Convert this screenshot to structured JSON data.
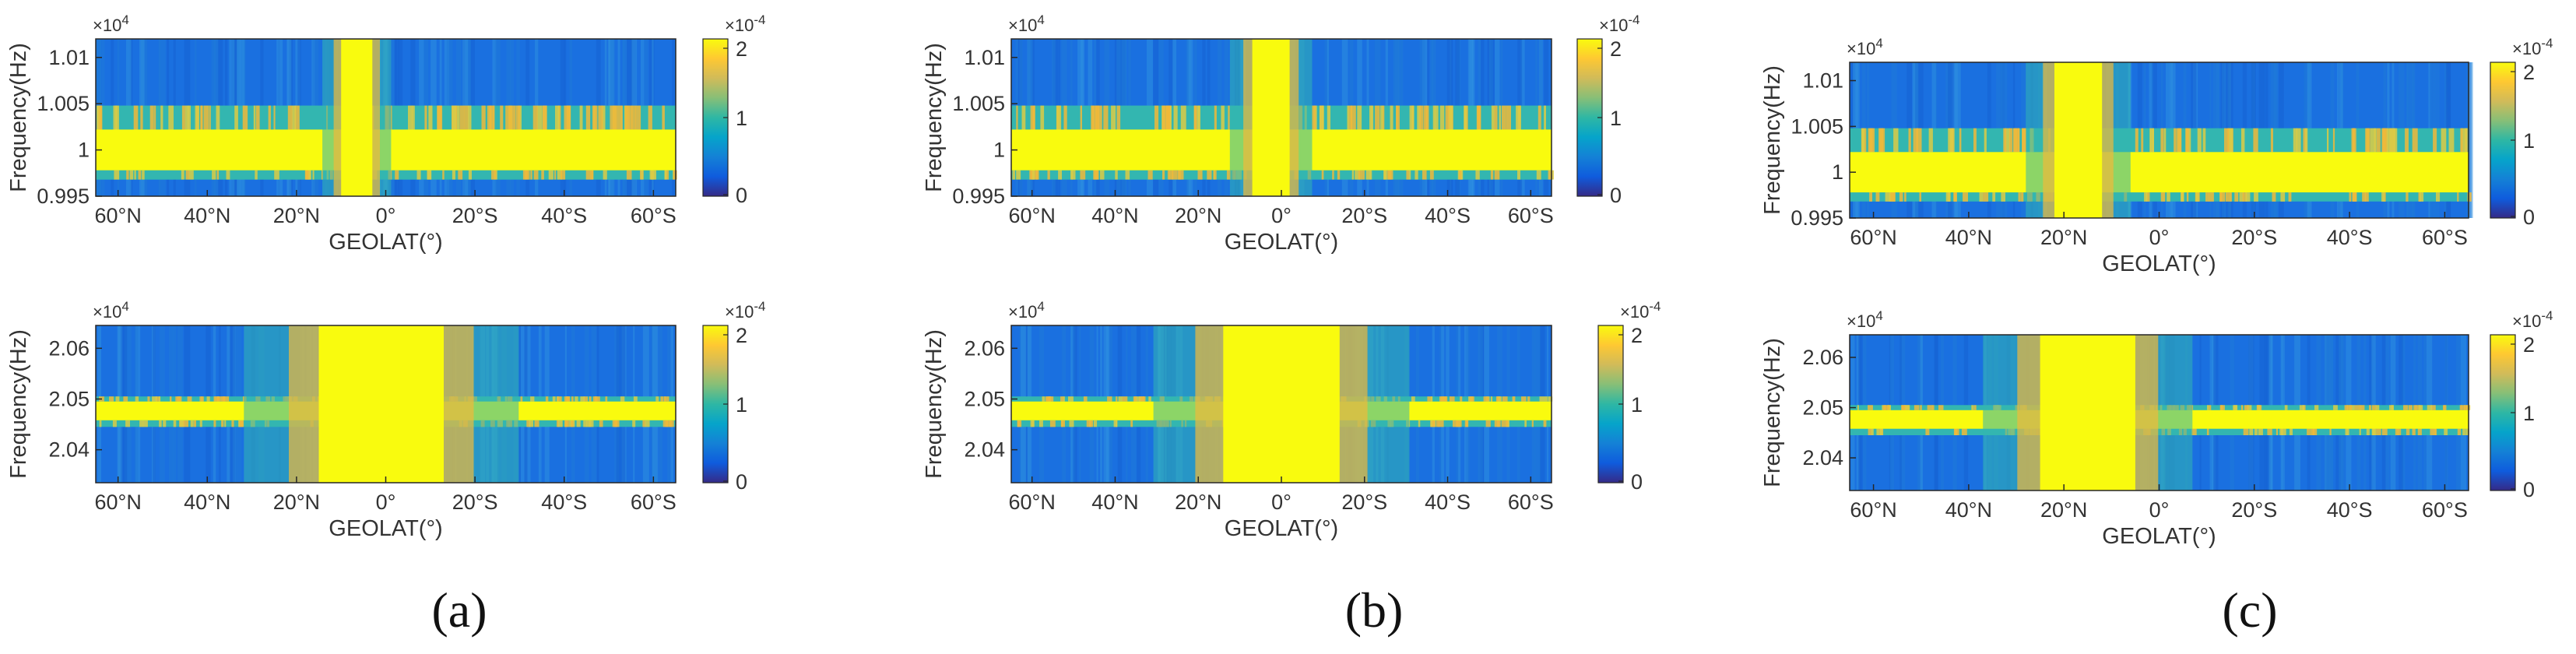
{
  "chart_data": [
    {
      "type": "heatmap",
      "panel": "(a)",
      "xlabel": "GEOLAT(°)",
      "x_ticks": [
        "60°N",
        "40°N",
        "20°N",
        "0°",
        "20°S",
        "40°S",
        "60°S"
      ],
      "x_range": [
        65,
        -65
      ],
      "plots": [
        {
          "ylabel": "Frequency(Hz)",
          "y_multiplier": "×10^4",
          "y_multiplier_base": "×10",
          "y_multiplier_exp": "4",
          "y_ticks": [
            "1.01",
            "1.005",
            "1",
            "0.995"
          ],
          "ylim": [
            0.995,
            1.012
          ],
          "colorbar": {
            "ticks": [
              "2",
              "1",
              "0"
            ],
            "multiplier_base": "×10",
            "multiplier_exp": "-4",
            "clim": [
              0,
              0.0002
            ]
          },
          "features": {
            "bright_band_y": [
              0.9978,
              1.0022
            ],
            "mid_band_y": [
              0.9968,
              1.0048
            ],
            "hot_lat": [
              10,
              3
            ],
            "equatorial_width_deg": 6
          }
        },
        {
          "ylabel": "Frequency(Hz)",
          "y_multiplier": "×10^4",
          "y_multiplier_base": "×10",
          "y_multiplier_exp": "4",
          "y_ticks": [
            "2.06",
            "2.05",
            "2.04"
          ],
          "ylim": [
            2.0335,
            2.0645
          ],
          "colorbar": {
            "ticks": [
              "2",
              "1",
              "0"
            ],
            "multiplier_base": "×10",
            "multiplier_exp": "-4",
            "clim": [
              0,
              0.0002
            ]
          },
          "features": {
            "bright_band_y": [
              2.0458,
              2.0495
            ],
            "mid_band_y": [
              2.0445,
              2.0505
            ],
            "hot_lat": [
              15,
              -13
            ],
            "equatorial_width_deg": 26
          }
        }
      ]
    },
    {
      "type": "heatmap",
      "panel": "(b)",
      "xlabel": "GEOLAT(°)",
      "x_ticks": [
        "60°N",
        "40°N",
        "20°N",
        "0°",
        "20°S",
        "40°S",
        "60°S"
      ],
      "x_range": [
        65,
        -65
      ],
      "plots": [
        {
          "ylabel": "Frequency(Hz)",
          "y_multiplier": "×10^4",
          "y_multiplier_base": "×10",
          "y_multiplier_exp": "4",
          "y_ticks": [
            "1.01",
            "1.005",
            "1",
            "0.995"
          ],
          "ylim": [
            0.995,
            1.012
          ],
          "colorbar": {
            "ticks": [
              "2",
              "1",
              "0"
            ],
            "multiplier_base": "×10",
            "multiplier_exp": "-4",
            "clim": [
              0,
              0.0002
            ]
          },
          "features": {
            "bright_band_y": [
              0.9978,
              1.0022
            ],
            "mid_band_y": [
              0.9968,
              1.0048
            ],
            "hot_lat": [
              7,
              -2
            ],
            "equatorial_width_deg": 12
          }
        },
        {
          "ylabel": "Frequency(Hz)",
          "y_multiplier": "×10^4",
          "y_multiplier_base": "×10",
          "y_multiplier_exp": "4",
          "y_ticks": [
            "2.06",
            "2.05",
            "2.04"
          ],
          "ylim": [
            2.0335,
            2.0645
          ],
          "colorbar": {
            "ticks": [
              "2",
              "1",
              "0"
            ],
            "multiplier_base": "×10",
            "multiplier_exp": "-4",
            "clim": [
              0,
              0.0002
            ]
          },
          "features": {
            "bright_band_y": [
              2.0458,
              2.0495
            ],
            "mid_band_y": [
              2.0445,
              2.0505
            ],
            "hot_lat": [
              14,
              -14
            ],
            "equatorial_width_deg": 30
          }
        }
      ]
    },
    {
      "type": "heatmap",
      "panel": "(c)",
      "xlabel": "GEOLAT(°)",
      "x_ticks": [
        "60°N",
        "40°N",
        "20°N",
        "0°",
        "20°S",
        "40°S",
        "60°S"
      ],
      "x_range": [
        65,
        -65
      ],
      "plots": [
        {
          "ylabel": "Frequency(Hz)",
          "y_multiplier": "×10^4",
          "y_multiplier_base": "×10",
          "y_multiplier_exp": "4",
          "y_ticks": [
            "1.01",
            "1.005",
            "1",
            "0.995"
          ],
          "ylim": [
            0.995,
            1.012
          ],
          "colorbar": {
            "ticks": [
              "2",
              "1",
              "0"
            ],
            "multiplier_base": "×10",
            "multiplier_exp": "-4",
            "clim": [
              0,
              0.0002
            ]
          },
          "features": {
            "bright_band_y": [
              0.9978,
              1.0022
            ],
            "mid_band_y": [
              0.9968,
              1.0048
            ],
            "hot_lat": [
              22,
              12
            ],
            "equatorial_width_deg": 12
          }
        },
        {
          "ylabel": "Frequency(Hz)",
          "y_multiplier": "×10^4",
          "y_multiplier_base": "×10",
          "y_multiplier_exp": "4",
          "y_ticks": [
            "2.06",
            "2.05",
            "2.04"
          ],
          "ylim": [
            2.0335,
            2.0645
          ],
          "colorbar": {
            "ticks": [
              "2",
              "1",
              "0"
            ],
            "multiplier_base": "×10",
            "multiplier_exp": "-4",
            "clim": [
              0,
              0.0002
            ]
          },
          "features": {
            "bright_band_y": [
              2.0458,
              2.0495
            ],
            "mid_band_y": [
              2.0445,
              2.0505
            ],
            "hot_lat": [
              25,
              5
            ],
            "equatorial_width_deg": 28
          }
        }
      ]
    }
  ],
  "colors": {
    "parula": [
      "#352a87",
      "#0f5cdd",
      "#1481d6",
      "#06a4ca",
      "#2eb7a4",
      "#87bf77",
      "#d1bb59",
      "#fec832",
      "#f9fb0e"
    ],
    "background_blue": "#1a70e0",
    "band_yellow": "#f9fb0e",
    "band_orange": "#f0b93a",
    "band_teal": "#33b6b0",
    "axis_text": "#333333"
  }
}
